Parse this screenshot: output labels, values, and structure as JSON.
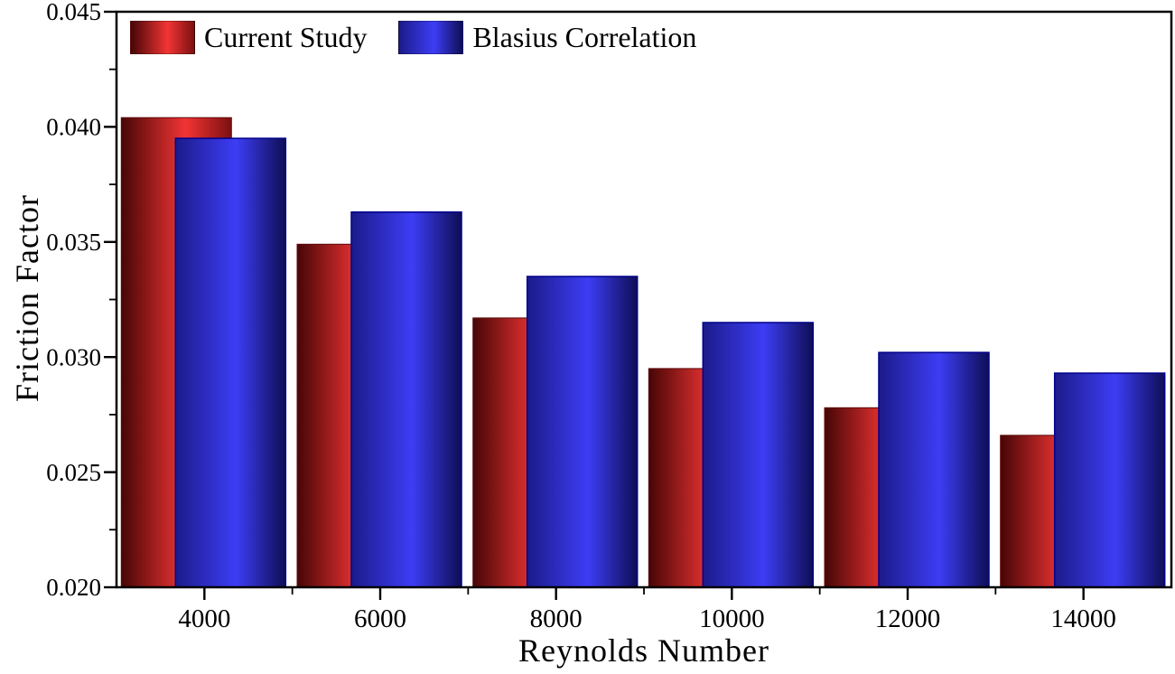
{
  "figure": {
    "background": "#ffffff",
    "axis_color": "#000000"
  },
  "legend": {
    "position": "top-left-inside-plot",
    "items": [
      {
        "label": "Current Study",
        "swatch": "red-gradient"
      },
      {
        "label": "Blasius Correlation",
        "swatch": "blue-gradient"
      }
    ]
  },
  "chart_data": {
    "type": "bar",
    "title": "",
    "xlabel": "Reynolds Number",
    "ylabel": "Friction Factor",
    "categories": [
      4000,
      6000,
      8000,
      10000,
      12000,
      14000
    ],
    "series": [
      {
        "name": "Current Study",
        "values": [
          0.0404,
          0.0349,
          0.0317,
          0.0295,
          0.0278,
          0.0266
        ],
        "gradient": [
          [
            "0%",
            "#470606"
          ],
          [
            "58%",
            "#f23434"
          ],
          [
            "100%",
            "#7c1010"
          ]
        ],
        "stroke": "#5e0a0a"
      },
      {
        "name": "Blasius Correlation",
        "values": [
          0.0395,
          0.0363,
          0.0335,
          0.0315,
          0.0302,
          0.0293
        ],
        "gradient": [
          [
            "0%",
            "#1b1b8a"
          ],
          [
            "55%",
            "#3d3df5"
          ],
          [
            "100%",
            "#0e0e55"
          ]
        ],
        "stroke": "#00008b"
      }
    ],
    "xlim": [
      3000,
      15000
    ],
    "ylim": [
      0.02,
      0.045
    ],
    "x_tick_labels": [
      "4000",
      "6000",
      "8000",
      "10000",
      "12000",
      "14000"
    ],
    "x_minor_ticks": [
      5000,
      7000,
      9000,
      11000,
      13000
    ],
    "y_major_ticks": [
      0.02,
      0.025,
      0.03,
      0.035,
      0.04,
      0.045
    ],
    "y_tick_labels": [
      "0.020",
      "0.025",
      "0.030",
      "0.035",
      "0.040",
      "0.045"
    ],
    "y_minor_ticks": [
      0.0225,
      0.0275,
      0.0325,
      0.0375,
      0.0425
    ],
    "grid": false,
    "legend_position": "top-left",
    "bar_style": "overlapped-gradient-cylinder"
  }
}
